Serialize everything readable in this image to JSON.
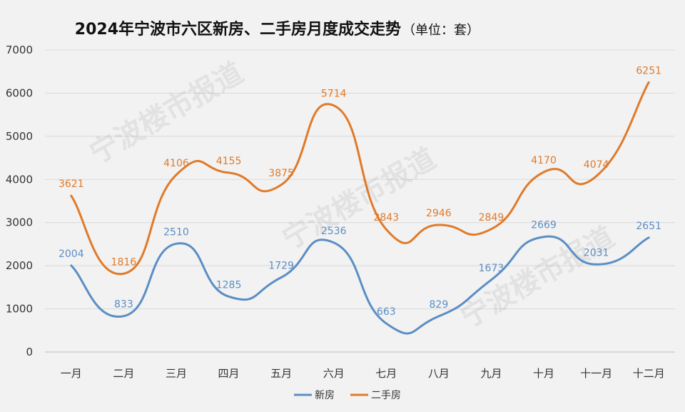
{
  "chart_data": {
    "type": "line",
    "title": "2024年宁波市六区新房、二手房月度成交走势",
    "title_unit": "（单位：套）",
    "categories": [
      "一月",
      "二月",
      "三月",
      "四月",
      "五月",
      "六月",
      "七月",
      "八月",
      "九月",
      "十月",
      "十一月",
      "十二月"
    ],
    "series": [
      {
        "name": "新房",
        "color": "#5b8ec4",
        "values": [
          2004,
          833,
          2510,
          1285,
          1729,
          2536,
          663,
          829,
          1673,
          2669,
          2031,
          2651
        ]
      },
      {
        "name": "二手房",
        "color": "#e07a2a",
        "values": [
          3621,
          1816,
          4106,
          4155,
          3875,
          5714,
          2843,
          2946,
          2849,
          4170,
          4074,
          6251
        ]
      }
    ],
    "yticks": [
      0,
      1000,
      2000,
      3000,
      4000,
      5000,
      6000,
      7000
    ],
    "ylim": [
      0,
      7000
    ],
    "grid": true,
    "legend_position": "bottom",
    "smooth": true
  },
  "watermark": "宁波楼市报道"
}
